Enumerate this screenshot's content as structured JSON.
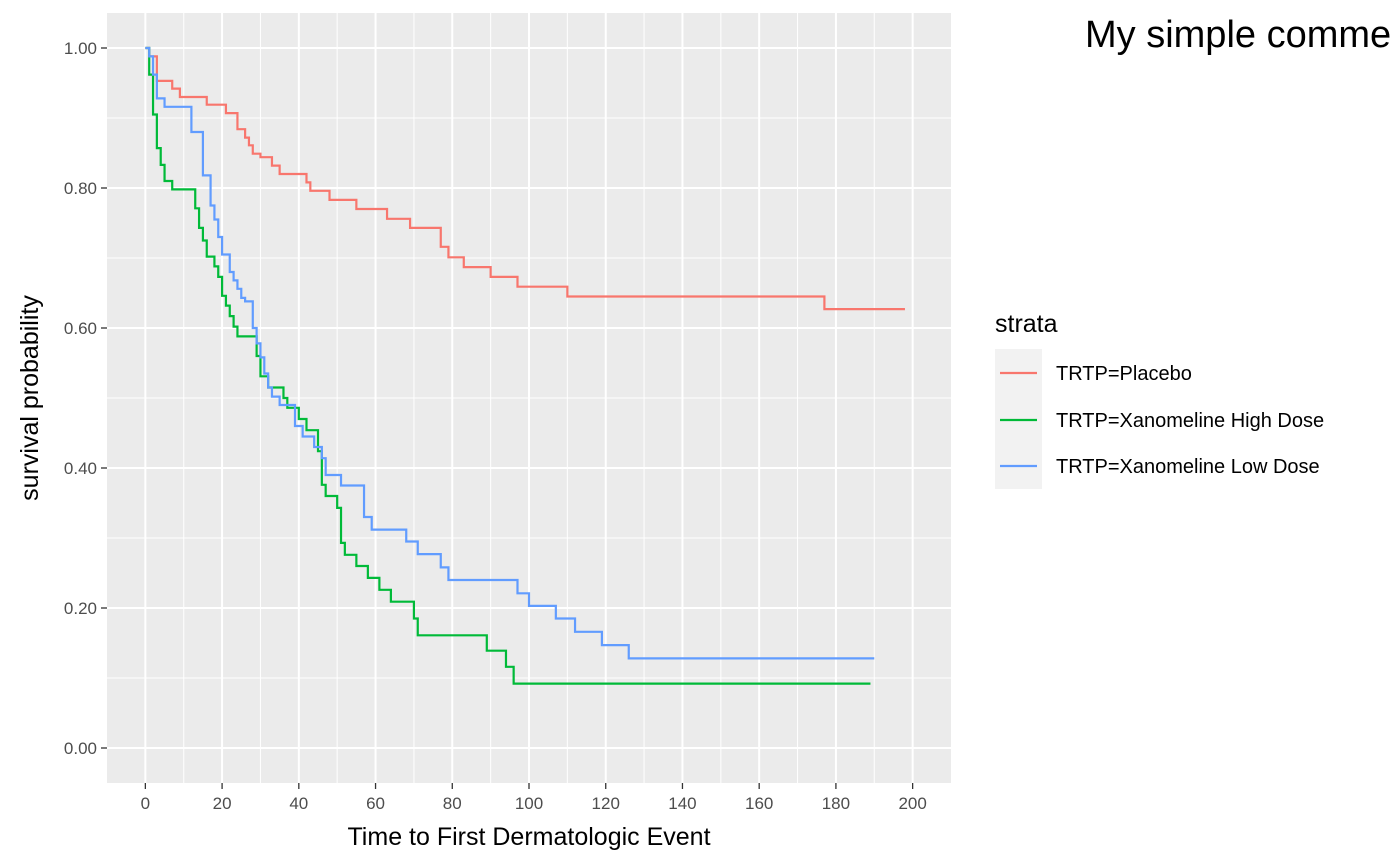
{
  "comment": "My simple comme",
  "chart_data": {
    "type": "line",
    "step": "post",
    "xlabel": "Time to First Dermatologic Event",
    "ylabel": "survival probability",
    "xlim": [
      -10,
      210
    ],
    "ylim": [
      -0.05,
      1.05
    ],
    "x_ticks": [
      0,
      20,
      40,
      60,
      80,
      100,
      120,
      140,
      160,
      180,
      200
    ],
    "x_tick_labels": [
      "0",
      "20",
      "40",
      "60",
      "80",
      "100",
      "120",
      "140",
      "160",
      "180",
      "200"
    ],
    "y_ticks": [
      0,
      0.2,
      0.4,
      0.6,
      0.8,
      1.0
    ],
    "y_tick_labels": [
      "0.00",
      "0.20",
      "0.40",
      "0.60",
      "0.80",
      "1.00"
    ],
    "grid": true,
    "legend_title": "strata",
    "legend_position": "right",
    "series": [
      {
        "name": "TRTP=Placebo",
        "color": "#F8766D",
        "x": [
          0,
          1,
          3,
          7,
          9,
          16,
          21,
          24,
          26,
          27,
          28,
          30,
          33,
          35,
          42,
          43,
          48,
          55,
          63,
          69,
          77,
          79,
          83,
          90,
          97,
          110,
          177,
          198
        ],
        "y": [
          1.0,
          0.988,
          0.953,
          0.942,
          0.93,
          0.919,
          0.907,
          0.884,
          0.872,
          0.861,
          0.849,
          0.844,
          0.832,
          0.82,
          0.808,
          0.796,
          0.783,
          0.77,
          0.756,
          0.743,
          0.716,
          0.701,
          0.687,
          0.673,
          0.659,
          0.645,
          0.627,
          0.627
        ]
      },
      {
        "name": "TRTP=Xanomeline High Dose",
        "color": "#00BA38",
        "x": [
          0,
          1,
          2,
          3,
          4,
          5,
          7,
          13,
          14,
          15,
          16,
          18,
          19,
          20,
          21,
          22,
          23,
          24,
          25,
          29,
          30,
          32,
          36,
          37,
          40,
          42,
          45,
          46,
          47,
          50,
          51,
          52,
          55,
          58,
          61,
          64,
          70,
          71,
          89,
          94,
          96,
          189
        ],
        "y": [
          1.0,
          0.962,
          0.905,
          0.857,
          0.833,
          0.81,
          0.798,
          0.771,
          0.743,
          0.725,
          0.702,
          0.688,
          0.673,
          0.646,
          0.632,
          0.617,
          0.602,
          0.588,
          0.588,
          0.56,
          0.531,
          0.515,
          0.5,
          0.486,
          0.47,
          0.454,
          0.424,
          0.376,
          0.36,
          0.343,
          0.293,
          0.276,
          0.26,
          0.243,
          0.226,
          0.209,
          0.185,
          0.161,
          0.139,
          0.116,
          0.092,
          0.092
        ]
      },
      {
        "name": "TRTP=Xanomeline Low Dose",
        "color": "#619CFF",
        "x": [
          0,
          1,
          2,
          3,
          5,
          12,
          15,
          17,
          18,
          19,
          20,
          22,
          23,
          24,
          25,
          26,
          28,
          29,
          30,
          31,
          32,
          33,
          35,
          39,
          41,
          44,
          46,
          47,
          51,
          57,
          59,
          68,
          71,
          77,
          79,
          97,
          100,
          107,
          112,
          119,
          126,
          190
        ],
        "y": [
          1.0,
          0.988,
          0.962,
          0.928,
          0.916,
          0.88,
          0.818,
          0.775,
          0.755,
          0.73,
          0.705,
          0.68,
          0.668,
          0.656,
          0.643,
          0.638,
          0.6,
          0.578,
          0.558,
          0.535,
          0.515,
          0.502,
          0.49,
          0.46,
          0.445,
          0.43,
          0.414,
          0.39,
          0.375,
          0.33,
          0.312,
          0.295,
          0.277,
          0.258,
          0.24,
          0.221,
          0.203,
          0.185,
          0.166,
          0.147,
          0.128,
          0.128
        ]
      }
    ]
  }
}
